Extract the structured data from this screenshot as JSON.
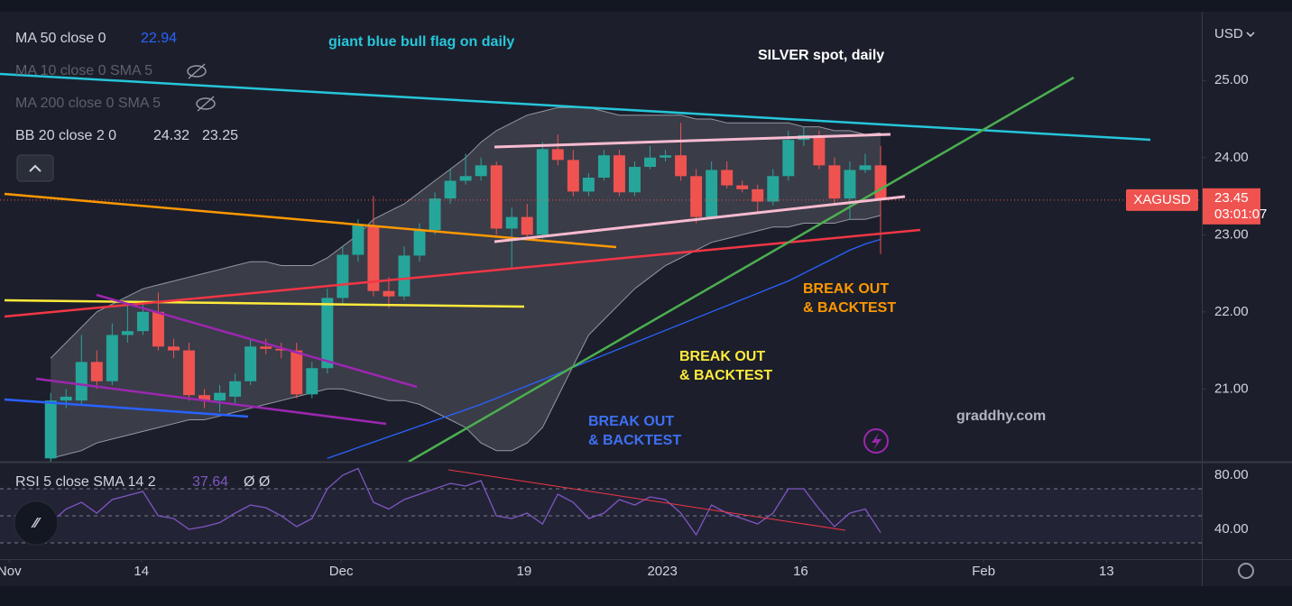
{
  "chart_data": {
    "type": "candlestick",
    "title": "SILVER spot, daily",
    "currency": "USD",
    "xlim": [
      -3.3,
      74.9
    ],
    "xticks": [
      {
        "value": -2.7,
        "label": "Nov"
      },
      {
        "value": 5.9,
        "label": "14"
      },
      {
        "value": 18.9,
        "label": "Dec"
      },
      {
        "value": 30.8,
        "label": "19"
      },
      {
        "value": 39.8,
        "label": "2023"
      },
      {
        "value": 48.8,
        "label": "16"
      },
      {
        "value": 60.7,
        "label": "Feb"
      },
      {
        "value": 68.7,
        "label": "13"
      }
    ],
    "ylim": [
      20.08,
      25.81
    ],
    "yticks": [
      {
        "value": 21,
        "label": "21.00"
      },
      {
        "value": 22,
        "label": "22.00"
      },
      {
        "value": 23,
        "label": "23.00"
      },
      {
        "value": 24,
        "label": "24.00"
      },
      {
        "value": 25,
        "label": "25.00"
      }
    ],
    "up_color": "#26a69a",
    "down_color": "#ef5350",
    "open": [
      20.1,
      20.85,
      20.85,
      21.35,
      21.1,
      21.7,
      21.75,
      22.0,
      21.55,
      21.5,
      20.92,
      20.85,
      20.9,
      21.1,
      21.55,
      21.52,
      21.5,
      20.93,
      21.27,
      22.18,
      22.74,
      23.12,
      22.27,
      22.2,
      22.73,
      23.06,
      23.47,
      23.7,
      23.76,
      23.9,
      23.08,
      23.23,
      23.0,
      24.11,
      23.97,
      23.56,
      23.74,
      24.03,
      23.55,
      23.88,
      24.0,
      24.03,
      23.76,
      23.23,
      23.84,
      23.64,
      23.59,
      23.43,
      23.76,
      24.23,
      24.29,
      23.9,
      23.47,
      23.84,
      23.9
    ],
    "high": [
      20.95,
      21.0,
      21.7,
      21.5,
      21.85,
      22.1,
      22.15,
      22.25,
      21.65,
      21.6,
      21.0,
      21.05,
      21.2,
      21.65,
      21.65,
      21.6,
      21.6,
      21.35,
      22.3,
      22.85,
      23.2,
      23.5,
      22.45,
      22.85,
      23.15,
      23.55,
      23.85,
      24.05,
      24.0,
      23.95,
      23.35,
      23.4,
      24.2,
      24.3,
      24.1,
      23.8,
      24.1,
      24.1,
      23.95,
      24.15,
      24.1,
      24.45,
      23.85,
      23.95,
      23.95,
      23.7,
      23.65,
      23.85,
      24.35,
      24.4,
      24.35,
      24.0,
      23.95,
      24.05,
      24.15
    ],
    "low": [
      20.0,
      20.75,
      20.8,
      21.0,
      21.05,
      21.6,
      21.7,
      21.5,
      21.4,
      20.85,
      20.75,
      20.7,
      20.8,
      21.05,
      21.45,
      21.4,
      20.88,
      20.88,
      21.2,
      22.1,
      22.65,
      22.2,
      22.05,
      22.15,
      22.65,
      23.0,
      23.4,
      23.65,
      23.7,
      23.0,
      22.55,
      22.95,
      22.95,
      23.9,
      23.5,
      23.5,
      23.7,
      23.5,
      23.5,
      23.85,
      23.95,
      23.7,
      23.15,
      23.2,
      23.6,
      23.55,
      23.3,
      23.38,
      23.7,
      24.15,
      23.85,
      23.4,
      23.2,
      23.8,
      22.75
    ],
    "close": [
      20.85,
      20.9,
      21.35,
      21.1,
      21.7,
      21.75,
      22.0,
      21.55,
      21.5,
      20.92,
      20.85,
      20.95,
      21.1,
      21.55,
      21.52,
      21.5,
      20.93,
      21.27,
      22.18,
      22.74,
      23.12,
      22.27,
      22.2,
      22.73,
      23.06,
      23.47,
      23.7,
      23.76,
      23.9,
      23.08,
      23.23,
      23.0,
      24.11,
      23.97,
      23.56,
      23.74,
      24.03,
      23.55,
      23.88,
      24.0,
      24.03,
      23.76,
      23.23,
      23.84,
      23.64,
      23.59,
      23.43,
      23.76,
      24.23,
      24.29,
      23.9,
      23.47,
      23.84,
      23.9,
      23.45
    ],
    "ma50": {
      "name": "MA 50 close 0",
      "color": "#2962ff",
      "values": [
        null,
        null,
        null,
        null,
        null,
        null,
        null,
        null,
        null,
        null,
        null,
        null,
        null,
        null,
        null,
        null,
        null,
        null,
        20.1,
        20.17,
        20.24,
        20.31,
        20.38,
        20.45,
        20.52,
        20.59,
        20.66,
        20.73,
        20.8,
        20.88,
        20.96,
        21.04,
        21.12,
        21.2,
        21.28,
        21.36,
        21.44,
        21.52,
        21.6,
        21.68,
        21.76,
        21.84,
        21.92,
        22.0,
        22.08,
        22.16,
        22.24,
        22.32,
        22.4,
        22.5,
        22.6,
        22.7,
        22.8,
        22.88,
        22.94
      ]
    },
    "hidden_indicators": [
      "MA 10 close 0 SMA 5",
      "MA 200 close 0 SMA 5"
    ],
    "bb": {
      "name": "BB 20 close 2 0",
      "color": "#9598a1",
      "upper": [
        21.4,
        21.6,
        21.8,
        22.0,
        22.1,
        22.2,
        22.3,
        22.35,
        22.4,
        22.45,
        22.5,
        22.55,
        22.6,
        22.65,
        22.65,
        22.6,
        22.6,
        22.6,
        22.7,
        22.85,
        23.0,
        23.2,
        23.3,
        23.4,
        23.55,
        23.7,
        23.85,
        24.0,
        24.2,
        24.35,
        24.45,
        24.55,
        24.6,
        24.65,
        24.65,
        24.65,
        24.6,
        24.55,
        24.55,
        24.55,
        24.55,
        24.55,
        24.5,
        24.5,
        24.45,
        24.45,
        24.45,
        24.45,
        24.45,
        24.4,
        24.4,
        24.35,
        24.35,
        24.3,
        24.32
      ],
      "lower": [
        20.1,
        20.15,
        20.2,
        20.3,
        20.35,
        20.4,
        20.45,
        20.5,
        20.55,
        20.6,
        20.6,
        20.65,
        20.7,
        20.75,
        20.8,
        20.85,
        20.9,
        20.95,
        21.0,
        21.0,
        20.95,
        20.9,
        20.85,
        20.85,
        20.8,
        20.7,
        20.6,
        20.5,
        20.3,
        20.2,
        20.2,
        20.3,
        20.5,
        20.9,
        21.3,
        21.7,
        21.9,
        22.1,
        22.3,
        22.45,
        22.6,
        22.7,
        22.8,
        22.9,
        22.95,
        23.0,
        23.05,
        23.1,
        23.1,
        23.15,
        23.15,
        23.15,
        23.2,
        23.2,
        23.25
      ]
    },
    "rsi": {
      "name": "RSI 5 close SMA 14 2",
      "color": "#7e57c2",
      "extra": "Ø Ø",
      "values": [
        45,
        55,
        60,
        52,
        62,
        65,
        68,
        50,
        48,
        40,
        42,
        45,
        52,
        58,
        56,
        50,
        42,
        48,
        70,
        80,
        85,
        60,
        55,
        62,
        66,
        70,
        74,
        72,
        76,
        50,
        48,
        52,
        44,
        66,
        60,
        48,
        52,
        62,
        58,
        64,
        62,
        52,
        36,
        58,
        52,
        48,
        44,
        52,
        70,
        70,
        55,
        42,
        52,
        55,
        37.64
      ],
      "ylim": [
        19.3,
        89.3
      ],
      "yticks": [
        {
          "value": 80,
          "label": "80.00"
        },
        {
          "value": 40,
          "label": "40.00"
        }
      ],
      "bands": [
        30,
        50,
        70
      ]
    },
    "price_tag": {
      "symbol": "XAGUSD",
      "countdown": "03:01:07"
    },
    "annotations": [
      {
        "lines": [
          "giant blue bull flag on daily"
        ],
        "color": "#26c6da"
      },
      {
        "lines": [
          "BREAK OUT",
          "& BACKTEST"
        ],
        "color": "#ff9800"
      },
      {
        "lines": [
          "BREAK OUT",
          "& BACKTEST"
        ],
        "color": "#ffeb3b"
      },
      {
        "lines": [
          "BREAK OUT",
          "& BACKTEST"
        ],
        "color": "#3f6ff2"
      }
    ],
    "watermark": "graddhy.com"
  }
}
